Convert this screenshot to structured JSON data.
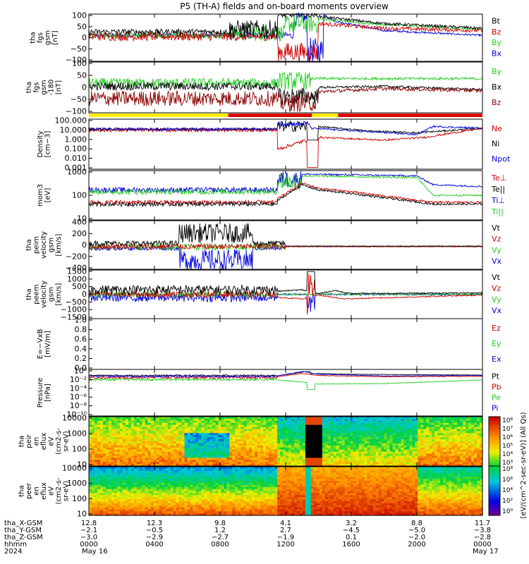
{
  "title": "P5 (TH-A) fields and on-board moments overview",
  "colors": {
    "black": "#000000",
    "red": "#cc0000",
    "green": "#22cc22",
    "blue": "#0000dd",
    "darkred": "#8b0000",
    "yellow": "#ffee00"
  },
  "mode_bar": {
    "segments": [
      {
        "start_hour": 0.0,
        "end_hour": 8.5,
        "color": "#ffee00"
      },
      {
        "start_hour": 8.5,
        "end_hour": 13.6,
        "color": "#dd0000"
      },
      {
        "start_hour": 13.6,
        "end_hour": 15.2,
        "color": "#ffee00"
      },
      {
        "start_hour": 15.2,
        "end_hour": 24.0,
        "color": "#dd0000"
      }
    ]
  },
  "chart_data": [
    {
      "type": "line",
      "ylabel_lines": [
        "tha",
        "fgs",
        "gsm",
        "[nT]"
      ],
      "yticks": [
        "100",
        "50",
        "0",
        "−50",
        "−100"
      ],
      "ylim": [
        -100,
        100
      ],
      "legend": [
        {
          "name": "Bt",
          "color": "#000000"
        },
        {
          "name": "Bz",
          "color": "#cc0000"
        },
        {
          "name": "By",
          "color": "#22cc22"
        },
        {
          "name": "Bx",
          "color": "#0000dd"
        }
      ]
    },
    {
      "type": "line",
      "ylabel_lines": [
        "tha",
        "fgs",
        "gsm",
        "-180",
        "[nT]"
      ],
      "yticks": [
        "100",
        "50",
        "0",
        "−50",
        "−100"
      ],
      "ylim": [
        -120,
        100
      ],
      "legend": [
        {
          "name": "By",
          "color": "#22cc22"
        },
        {
          "name": "Bx",
          "color": "#000000"
        },
        {
          "name": "Bz",
          "color": "#8b0000"
        }
      ]
    },
    {
      "type": "line",
      "scale": "log",
      "ylabel_lines": [
        "Density",
        "[cm−3]"
      ],
      "yticks": [
        "100.000",
        "10.000",
        "1.000",
        "0.100",
        "0.010",
        "0.001"
      ],
      "legend": [
        {
          "name": "Ne",
          "color": "#cc0000"
        },
        {
          "name": "Ni",
          "color": "#000000"
        },
        {
          "name": "Npot",
          "color": "#0000dd"
        }
      ]
    },
    {
      "type": "line",
      "scale": "log",
      "ylabel_lines": [
        "mom3",
        "[eV]"
      ],
      "yticks": [
        "1000",
        "100",
        "10"
      ],
      "legend": [
        {
          "name": "Te⊥",
          "color": "#cc0000"
        },
        {
          "name": "Te||",
          "color": "#000000"
        },
        {
          "name": "Ti⊥",
          "color": "#0000dd"
        },
        {
          "name": "Ti||",
          "color": "#22cc22"
        }
      ]
    },
    {
      "type": "line",
      "ylabel_lines": [
        "tha",
        "peim",
        "velocity",
        "gsm",
        "[km/s]"
      ],
      "yticks": [
        "400",
        "200",
        "0",
        "−200",
        "−400"
      ],
      "ylim": [
        -400,
        400
      ],
      "legend": [
        {
          "name": "Vt",
          "color": "#000000"
        },
        {
          "name": "Vz",
          "color": "#cc0000"
        },
        {
          "name": "Vy",
          "color": "#22cc22"
        },
        {
          "name": "Vx",
          "color": "#0000dd"
        }
      ]
    },
    {
      "type": "line",
      "ylabel_lines": [
        "tha",
        "peem",
        "velocity",
        "gsm",
        "[km/s]"
      ],
      "yticks": [
        "1500",
        "1000",
        "500",
        "0",
        "−500",
        "−1000",
        "−1500"
      ],
      "ylim": [
        -1500,
        1500
      ],
      "legend": [
        {
          "name": "Vt",
          "color": "#000000"
        },
        {
          "name": "Vz",
          "color": "#cc0000"
        },
        {
          "name": "Vy",
          "color": "#22cc22"
        },
        {
          "name": "Vx",
          "color": "#0000dd"
        }
      ]
    },
    {
      "type": "line",
      "ylabel_lines": [
        "E=−VxB",
        "[mV/m]"
      ],
      "yticks": [
        "1.0",
        "0.8",
        "0.6",
        "0.4",
        "0.2",
        "0.0"
      ],
      "ylim": [
        0,
        1
      ],
      "legend": [
        {
          "name": "Ez",
          "color": "#cc0000"
        },
        {
          "name": "Ey",
          "color": "#22cc22"
        },
        {
          "name": "Ex",
          "color": "#0000dd"
        }
      ]
    },
    {
      "type": "line",
      "scale": "log",
      "ylabel_lines": [
        "Pressure",
        "[nPa]"
      ],
      "yticks": [
        "10⁰",
        "10⁻²",
        "10⁻⁴",
        "10⁻⁶",
        "10⁻⁸",
        "10⁻¹⁰"
      ],
      "legend": [
        {
          "name": "Pt",
          "color": "#000000"
        },
        {
          "name": "Pb",
          "color": "#cc0000"
        },
        {
          "name": "Pe",
          "color": "#22cc22"
        },
        {
          "name": "Pi",
          "color": "#0000dd"
        }
      ]
    },
    {
      "type": "heatmap",
      "ylabel_lines": [
        "tha",
        "peir",
        "en",
        "eflux",
        "eV",
        "(cm2-s-",
        "sr-eV)"
      ],
      "yticks": [
        "10000",
        "1000",
        "100",
        "10"
      ]
    },
    {
      "type": "heatmap",
      "ylabel_lines": [
        "tha",
        "peer",
        "en",
        "eflux",
        "eV",
        "(cm2-s-",
        "sr-eV)"
      ],
      "yticks": [
        "10000",
        "1000",
        "100",
        "10"
      ]
    }
  ],
  "colorbar": {
    "label": "[eV/(cm^2-sec-sr-eV)] (All Qs)",
    "top_ticks": [
      "10⁸",
      "10⁷",
      "10⁶",
      "10⁵",
      "10⁴",
      "10³"
    ],
    "bottom_ticks": [
      "10⁸",
      "10⁶",
      "10⁴",
      "10²",
      "10⁰"
    ]
  },
  "x_axis": {
    "rows": [
      {
        "label": "tha_X-GSM",
        "values": [
          "12.8",
          "12.3",
          "9.8",
          "4.1",
          "3.2",
          "8.8",
          "11.7"
        ]
      },
      {
        "label": "tha_Y-GSM",
        "values": [
          "−2.1",
          "−0.5",
          "1.2",
          "2.7",
          "−4.5",
          "−5.0",
          "−3.8"
        ]
      },
      {
        "label": "tha_Z-GSM",
        "values": [
          "−3.0",
          "−2.9",
          "−2.7",
          "−1.9",
          "0.1",
          "−2.0",
          "−2.8"
        ]
      },
      {
        "label": "hhmm",
        "values": [
          "0000",
          "0400",
          "0800",
          "1200",
          "1600",
          "2000",
          "0000"
        ]
      }
    ],
    "year": "2024",
    "start_date": "May 16",
    "end_date": "May 17",
    "tick_hours": [
      0,
      4,
      8,
      12,
      16,
      20,
      24
    ]
  }
}
